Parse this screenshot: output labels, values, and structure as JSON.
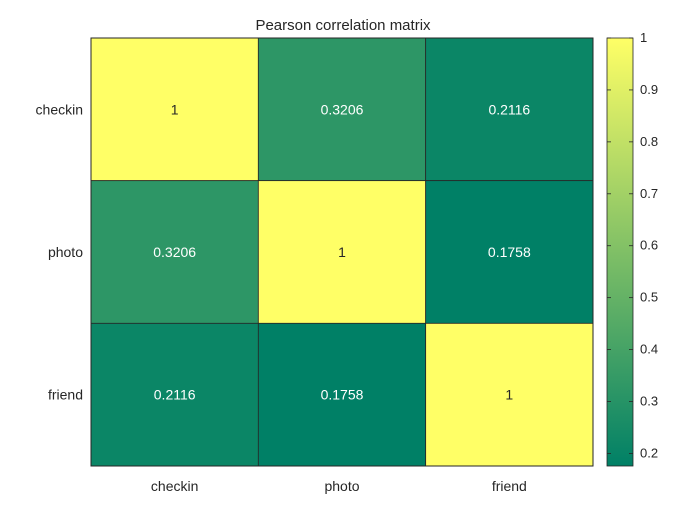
{
  "chart_data": {
    "type": "heatmap",
    "title": "Pearson correlation matrix",
    "xlabel": "",
    "ylabel": "",
    "row_labels": [
      "checkin",
      "photo",
      "friend"
    ],
    "col_labels": [
      "checkin",
      "photo",
      "friend"
    ],
    "values": [
      [
        1,
        0.3206,
        0.2116
      ],
      [
        0.3206,
        1,
        0.1758
      ],
      [
        0.2116,
        0.1758,
        1
      ]
    ],
    "cell_text": [
      [
        "1",
        "0.3206",
        "0.2116"
      ],
      [
        "0.3206",
        "1",
        "0.1758"
      ],
      [
        "0.2116",
        "0.1758",
        "1"
      ]
    ],
    "colormap": "summer",
    "colormap_low": "#008066",
    "colormap_high": "#ffff66",
    "colorbar": {
      "range": [
        0.1758,
        1
      ],
      "ticks": [
        0.2,
        0.3,
        0.4,
        0.5,
        0.6,
        0.7,
        0.8,
        0.9,
        1
      ],
      "tick_labels": [
        "0.2",
        "0.3",
        "0.4",
        "0.5",
        "0.6",
        "0.7",
        "0.8",
        "0.9",
        "1"
      ],
      "placement": "right"
    },
    "grid": false
  }
}
